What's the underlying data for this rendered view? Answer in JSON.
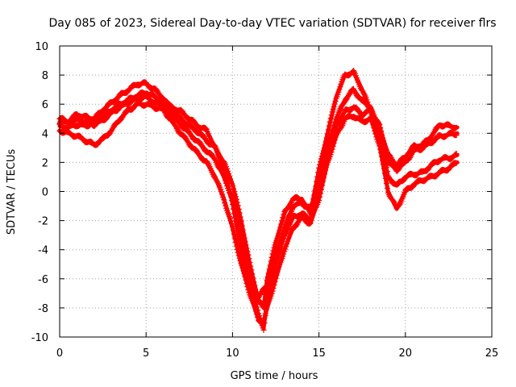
{
  "chart_data": {
    "type": "scatter",
    "title": "Day 085 of 2023, Sidereal Day-to-day VTEC variation (SDTVAR) for receiver flrs",
    "xlabel": "GPS time / hours",
    "ylabel": "SDTVAR / TECUs",
    "xlim": [
      0,
      25
    ],
    "ylim": [
      -10,
      10
    ],
    "xticks": [
      0,
      5,
      10,
      15,
      20,
      25
    ],
    "yticks": [
      -10,
      -8,
      -6,
      -4,
      -2,
      0,
      2,
      4,
      6,
      8,
      10
    ],
    "grid": true,
    "legend": "none",
    "marker": "plus",
    "color": "#ff0000",
    "series": [
      {
        "x": [
          0,
          0.5,
          1,
          1.5,
          2,
          2.5,
          3,
          3.5,
          4,
          4.5,
          5,
          5.5,
          6,
          6.5,
          7,
          7.5,
          8,
          8.5,
          9,
          9.5,
          10,
          10.5,
          11,
          11.5,
          11.8,
          12,
          12.5,
          13,
          13.5,
          14,
          14.5,
          15,
          15.5,
          16,
          16.5,
          17,
          17.5,
          18,
          18.5,
          19,
          19.5,
          20,
          20.5,
          21,
          21.5,
          22,
          22.5,
          23
        ],
        "y": [
          5.0,
          4.8,
          5.3,
          5.1,
          5.0,
          5.6,
          6.1,
          6.6,
          7.0,
          7.4,
          7.4,
          7.0,
          6.4,
          5.6,
          5.0,
          4.5,
          4.1,
          3.5,
          3.0,
          2.0,
          0.5,
          -2.0,
          -5.0,
          -7.5,
          -8.0,
          -6.0,
          -3.5,
          -1.5,
          -0.5,
          -0.5,
          -1.5,
          1.5,
          4.0,
          6.5,
          8.0,
          8.2,
          7.0,
          5.5,
          4.5,
          2.5,
          1.8,
          2.4,
          3.1,
          3.2,
          3.8,
          4.6,
          4.5,
          4.4
        ]
      },
      {
        "x": [
          0,
          0.5,
          1,
          1.5,
          2,
          2.5,
          3,
          3.5,
          4,
          4.5,
          5,
          5.5,
          6,
          6.5,
          7,
          7.5,
          8,
          8.5,
          9,
          9.5,
          10,
          10.5,
          11,
          11.5,
          11.8,
          12,
          12.5,
          13,
          13.5,
          14,
          14.5,
          15,
          15.5,
          16,
          16.5,
          17,
          17.5,
          18,
          18.5,
          19,
          19.5,
          20,
          20.5,
          21,
          21.5,
          22,
          22.5,
          23
        ],
        "y": [
          4.5,
          4.4,
          4.6,
          4.5,
          4.8,
          5.2,
          5.6,
          6.0,
          6.3,
          6.6,
          6.8,
          6.5,
          6.0,
          5.3,
          4.6,
          4.0,
          3.4,
          2.8,
          2.2,
          1.0,
          -0.5,
          -3.0,
          -6.0,
          -8.5,
          -9.4,
          -7.5,
          -5.0,
          -3.0,
          -1.8,
          -1.5,
          -2.0,
          0.5,
          3.0,
          5.0,
          6.3,
          7.0,
          6.2,
          5.8,
          4.0,
          1.0,
          0.4,
          1.0,
          1.2,
          1.3,
          1.8,
          2.2,
          2.3,
          2.5
        ]
      },
      {
        "x": [
          0,
          0.5,
          1,
          1.5,
          2,
          2.5,
          3,
          3.5,
          4,
          4.5,
          5,
          5.5,
          6,
          6.5,
          7,
          7.5,
          8,
          8.5,
          9,
          9.5,
          10,
          10.5,
          11,
          11.5,
          11.8,
          12,
          12.5,
          13,
          13.5,
          14,
          14.5,
          15,
          15.5,
          16,
          16.5,
          17,
          17.5,
          18,
          18.5,
          19,
          19.5,
          20,
          20.5,
          21,
          21.5,
          22,
          22.5,
          23
        ],
        "y": [
          4.2,
          4.0,
          3.8,
          3.5,
          3.2,
          3.6,
          4.2,
          5.0,
          5.6,
          6.0,
          6.0,
          5.8,
          5.6,
          4.8,
          4.0,
          3.3,
          2.6,
          2.0,
          1.0,
          -0.5,
          -2.5,
          -5.0,
          -7.0,
          -8.8,
          -9.0,
          -8.0,
          -6.0,
          -4.0,
          -2.5,
          -1.8,
          -2.2,
          -0.5,
          2.0,
          3.8,
          5.0,
          5.2,
          4.8,
          5.0,
          3.2,
          0.0,
          -1.2,
          0.0,
          0.5,
          0.8,
          1.0,
          1.3,
          1.6,
          2.0
        ]
      },
      {
        "x": [
          0,
          0.5,
          1,
          1.5,
          2,
          2.5,
          3,
          3.5,
          4,
          4.5,
          5,
          5.5,
          6,
          6.5,
          7,
          7.5,
          8,
          8.5,
          9,
          9.5,
          10,
          10.5,
          11,
          11.5,
          12,
          12.5,
          13,
          13.5,
          14,
          14.5,
          15,
          15.5,
          16,
          16.5,
          17,
          17.5,
          18,
          18.5,
          19,
          19.5,
          20,
          20.5,
          21,
          21.5,
          22,
          22.5,
          23
        ],
        "y": [
          4.8,
          4.7,
          4.9,
          4.8,
          4.6,
          4.9,
          5.4,
          5.8,
          6.1,
          6.4,
          6.5,
          6.1,
          5.9,
          5.8,
          5.5,
          5.0,
          4.5,
          4.2,
          3.0,
          1.5,
          -0.8,
          -4.0,
          -6.5,
          -7.2,
          -6.5,
          -4.5,
          -2.5,
          -1.0,
          -0.8,
          -1.2,
          0.0,
          2.5,
          4.5,
          5.5,
          5.8,
          5.3,
          5.6,
          4.5,
          2.0,
          1.5,
          2.0,
          2.8,
          3.0,
          3.4,
          3.8,
          3.9,
          4.0
        ]
      }
    ]
  }
}
